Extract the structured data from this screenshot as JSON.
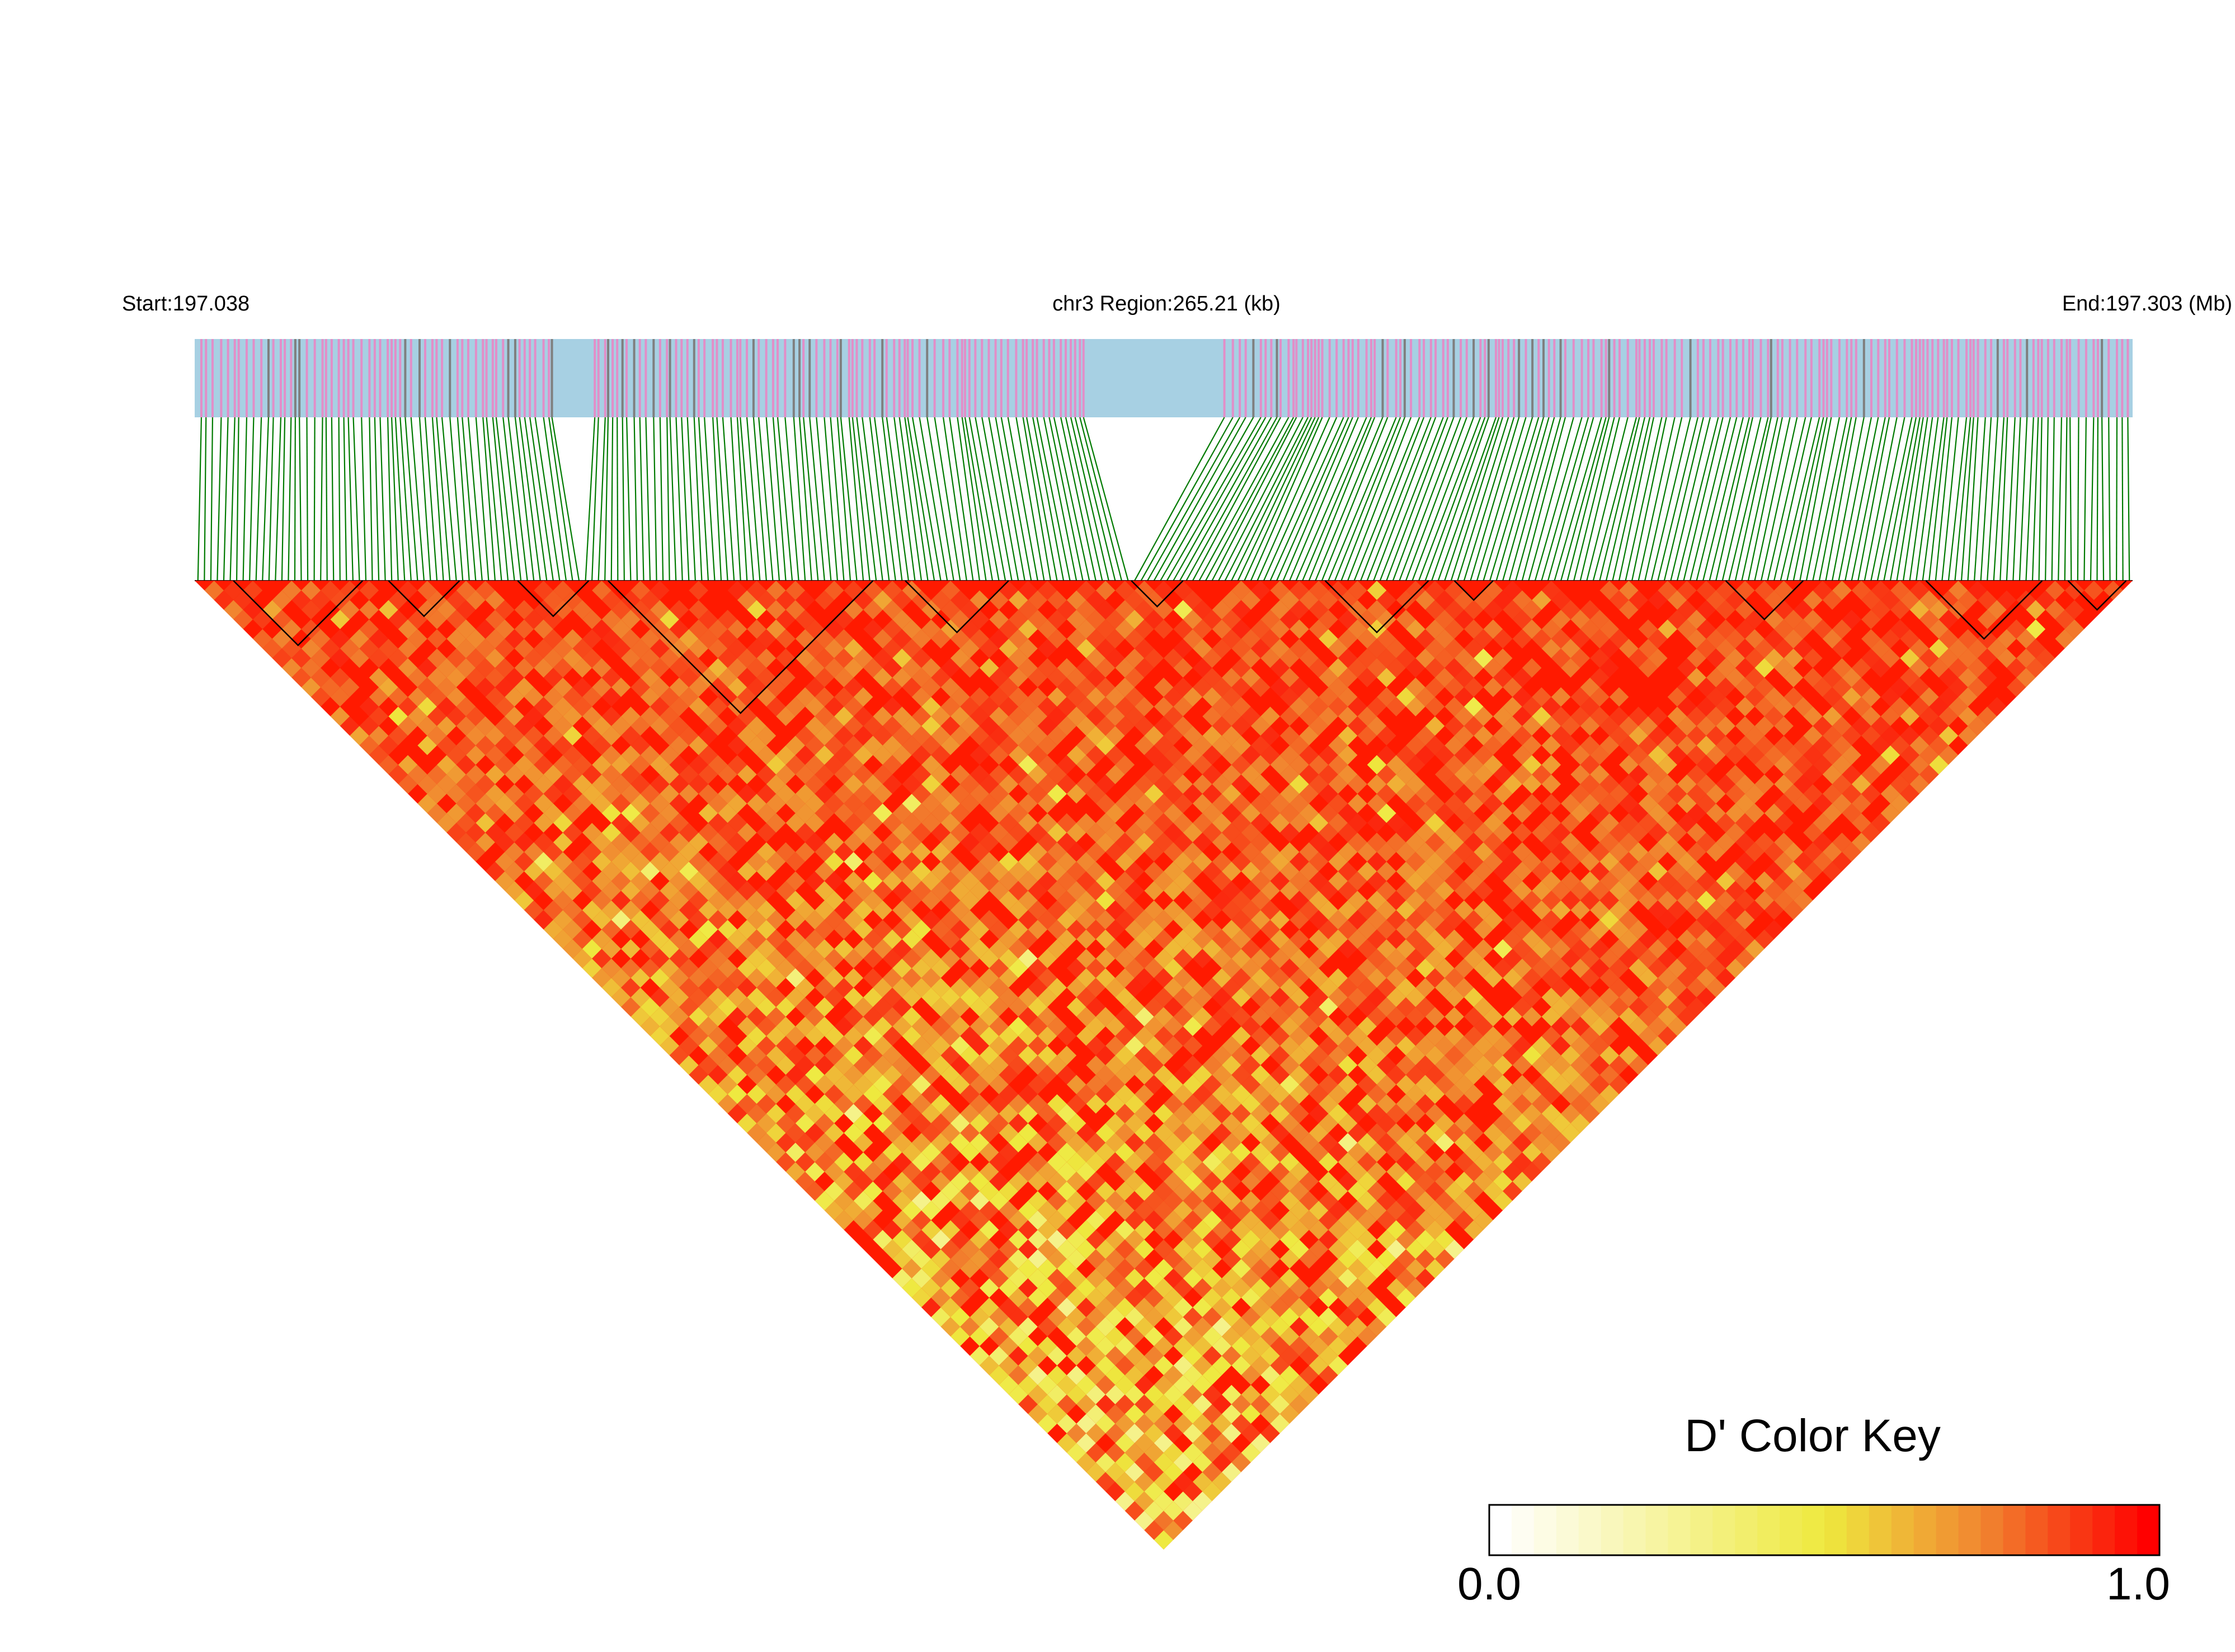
{
  "header": {
    "start_label": "Start:197.038",
    "region_label": "chr3 Region:265.21 (kb)",
    "end_label": "End:197.303 (Mb)"
  },
  "color_key": {
    "title": "D' Color Key",
    "min_label": "0.0",
    "max_label": "1.0",
    "colors": [
      "#ffffff",
      "#f3ee4e",
      "#f29a2c",
      "#ff0000"
    ]
  },
  "chart_data": {
    "type": "heatmap",
    "description_of_content": "",
    "chromosome": "chr3",
    "region_start_mb": 197.038,
    "region_end_mb": 197.303,
    "region_length_kb": 265.21,
    "metric": "D'",
    "value_range": [
      0.0,
      1.0
    ],
    "approx_snp_count": 300,
    "track_colors": {
      "background": "#a7d0e3",
      "snp_marker": "#e28ec8",
      "snp_marker_dark": "#7f7f7f",
      "connector": "#007a00",
      "heatmap_high": "#ff0000"
    },
    "ld_blocks_approx_index_ranges": [
      [
        6,
        25
      ],
      [
        30,
        40
      ],
      [
        50,
        60
      ],
      [
        64,
        104
      ],
      [
        110,
        125
      ],
      [
        145,
        152
      ],
      [
        175,
        190
      ],
      [
        195,
        200
      ],
      [
        237,
        248
      ],
      [
        268,
        285
      ],
      [
        290,
        298
      ]
    ]
  }
}
